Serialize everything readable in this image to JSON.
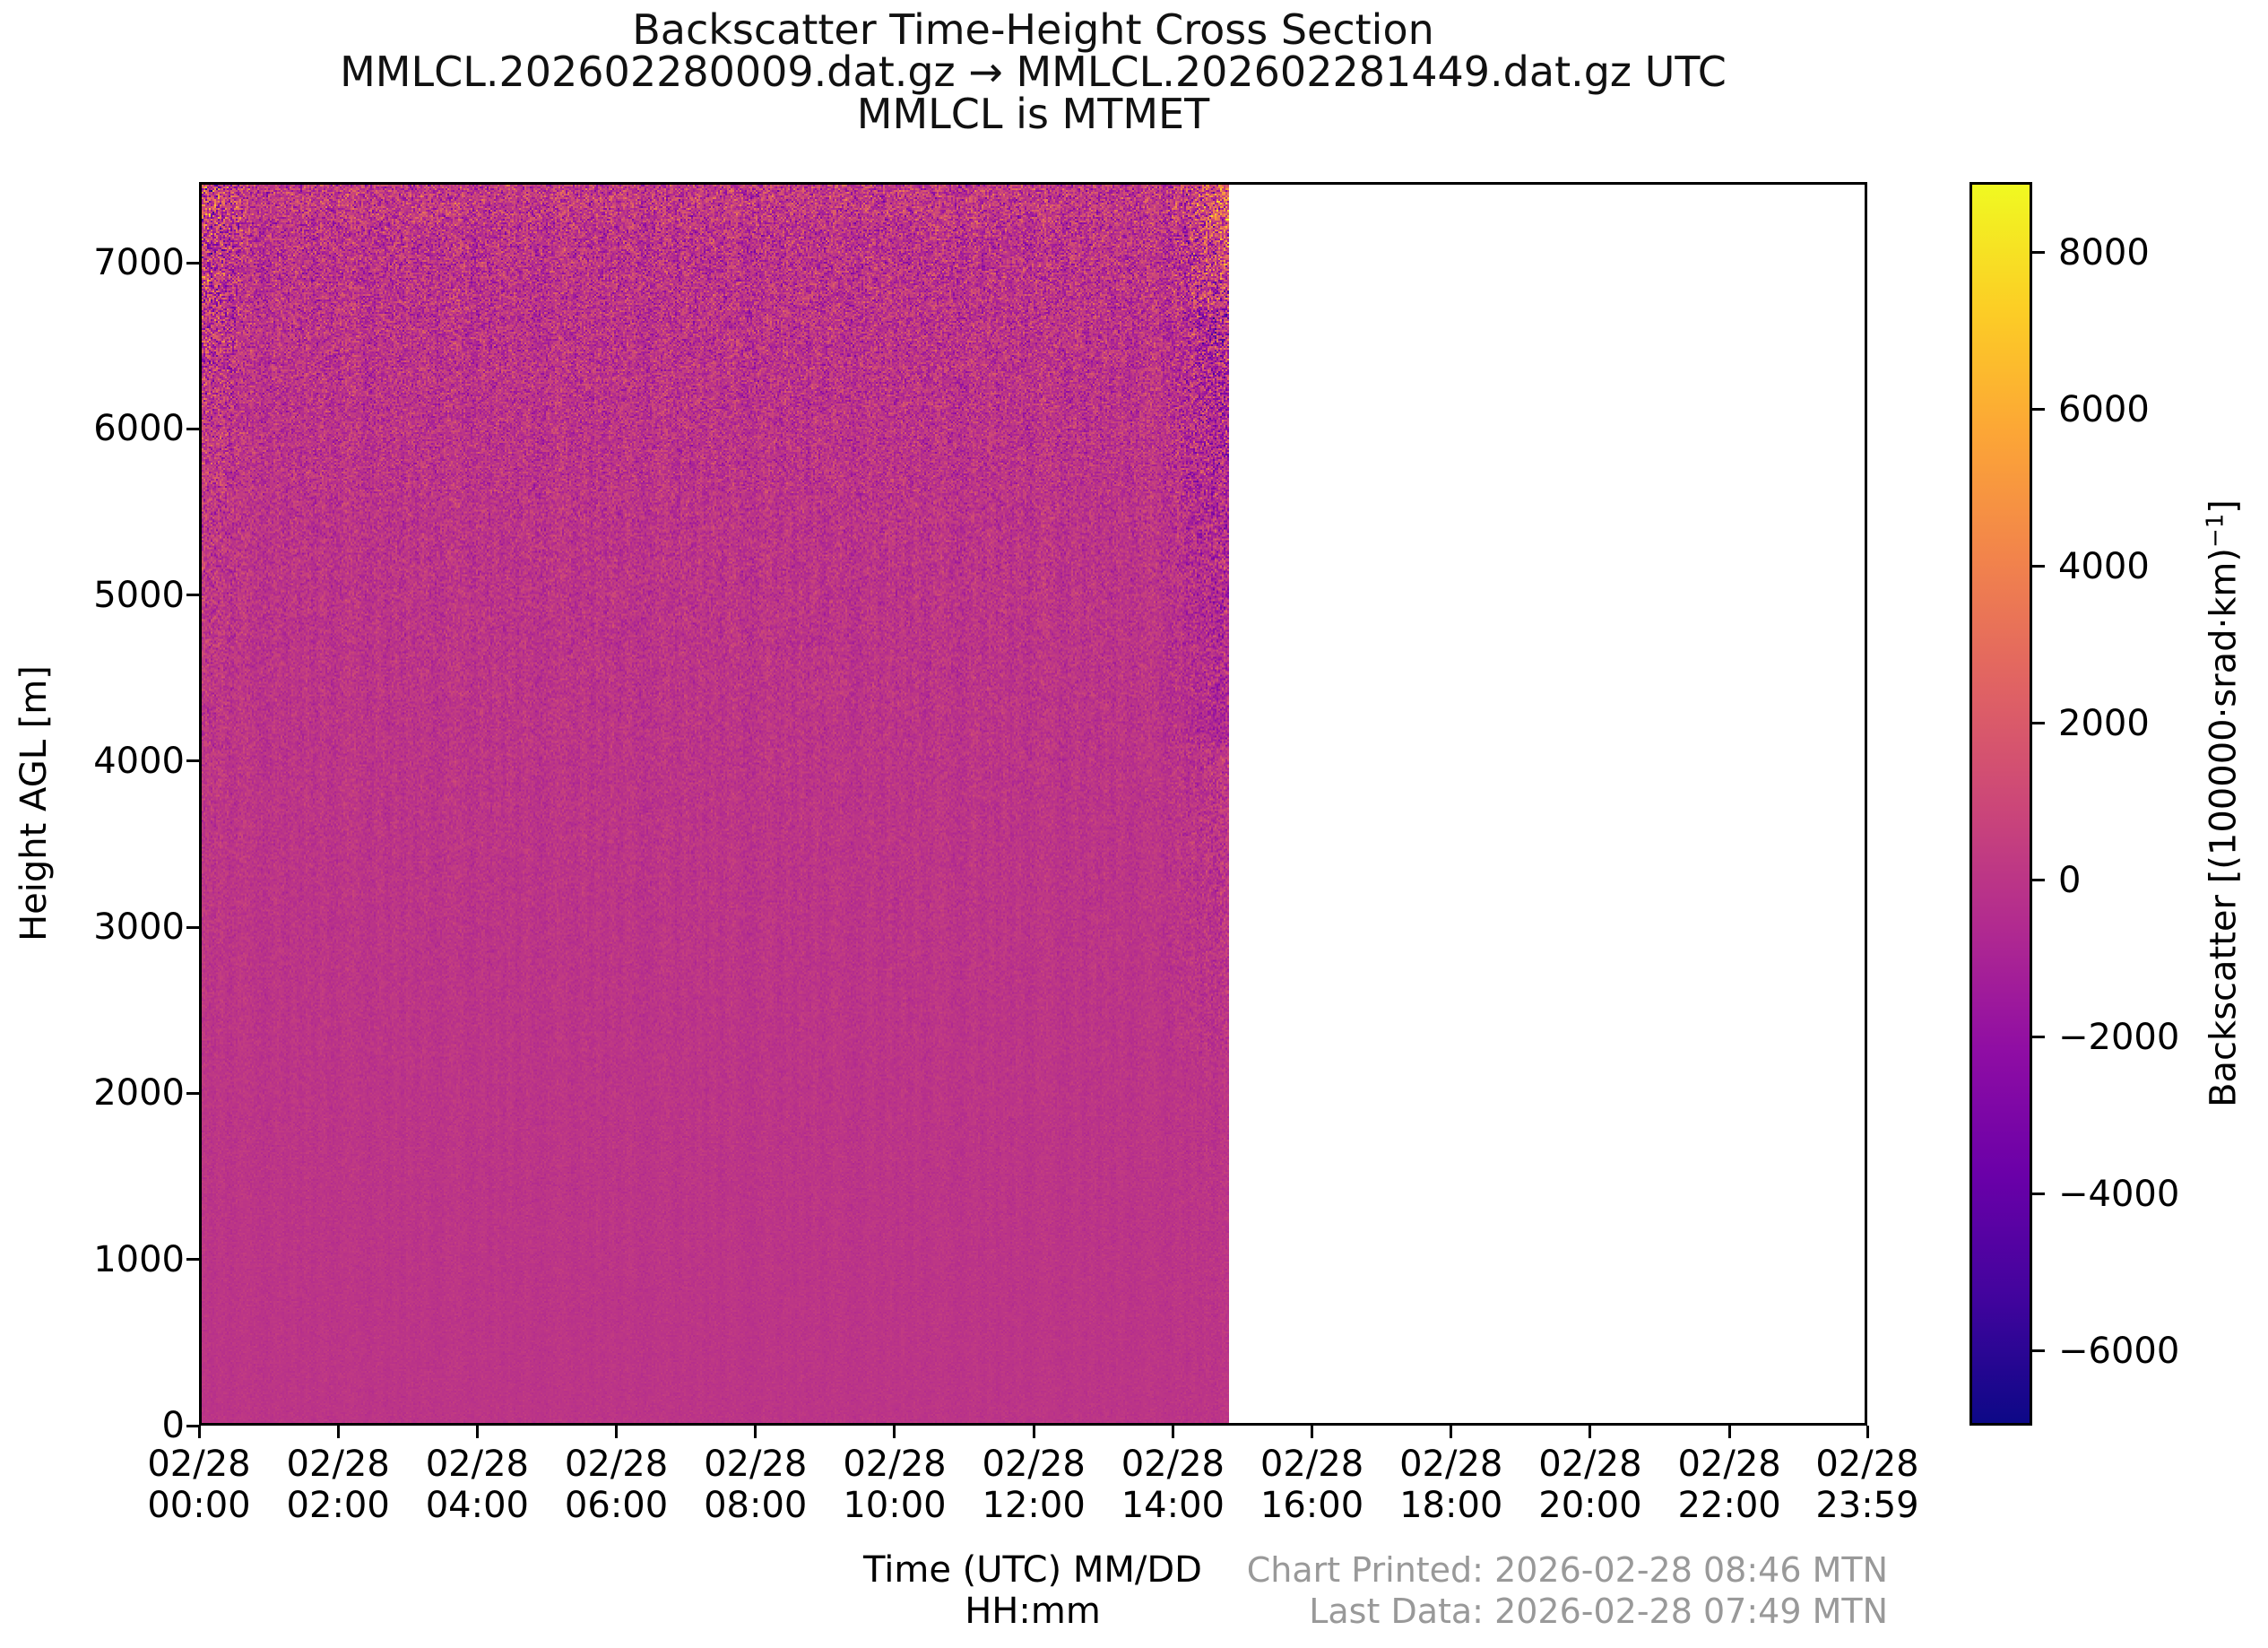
{
  "figure": {
    "title_line1": "Backscatter Time-Height Cross Section",
    "title_line2": "MMLCL.202602280009.dat.gz → MMLCL.202602281449.dat.gz UTC",
    "title_line3": "MMLCL is MTMET",
    "footer_line1": "Chart Printed: 2026-02-28 08:46 MTN",
    "footer_line2": "Last Data: 2026-02-28 07:49 MTN"
  },
  "axes": {
    "xlabel_line1": "Time (UTC) MM/DD",
    "xlabel_line2": "HH:mm",
    "ylabel": "Height AGL [m]",
    "colorbar_label_full": "Backscatter [(100000·srad·km)⁻¹]",
    "colorbar_label_prefix": "Backscatter [(100000·srad·km)",
    "colorbar_label_sup": "−1",
    "colorbar_label_suffix": "]"
  },
  "colors": {
    "background": "#ffffff",
    "axis": "#000000",
    "title_text": "#111111",
    "footer_text": "#999999",
    "bulk_field_magenta": "#b5308d",
    "no_data_region": "#ffffff",
    "colormap_stops": [
      [
        0.0,
        "#0d0887"
      ],
      [
        0.1,
        "#41049d"
      ],
      [
        0.2,
        "#6a00a8"
      ],
      [
        0.3,
        "#8f0da4"
      ],
      [
        0.4,
        "#b12a90"
      ],
      [
        0.5,
        "#cc4778"
      ],
      [
        0.6,
        "#e16462"
      ],
      [
        0.7,
        "#f2844b"
      ],
      [
        0.8,
        "#fca636"
      ],
      [
        0.9,
        "#fcce25"
      ],
      [
        1.0,
        "#f0f921"
      ]
    ]
  },
  "chart_data": {
    "type": "heatmap",
    "title": "Backscatter Time-Height Cross Section",
    "subtitle": "MMLCL.202602280009.dat.gz → MMLCL.202602281449.dat.gz UTC",
    "station_note": "MMLCL is MTMET",
    "xlabel": "Time (UTC) MM/DD HH:mm",
    "ylabel": "Height AGL [m]",
    "colorbar_label": "Backscatter [(100000·srad·km)⁻¹]",
    "colormap": "plasma",
    "grid": false,
    "legend": null,
    "ylim": [
      0,
      7486
    ],
    "x_total_minutes": 1439,
    "x_ticks": [
      {
        "date": "02/28",
        "time": "00:00",
        "minutes": 0
      },
      {
        "date": "02/28",
        "time": "02:00",
        "minutes": 120
      },
      {
        "date": "02/28",
        "time": "04:00",
        "minutes": 240
      },
      {
        "date": "02/28",
        "time": "06:00",
        "minutes": 360
      },
      {
        "date": "02/28",
        "time": "08:00",
        "minutes": 480
      },
      {
        "date": "02/28",
        "time": "10:00",
        "minutes": 600
      },
      {
        "date": "02/28",
        "time": "12:00",
        "minutes": 720
      },
      {
        "date": "02/28",
        "time": "14:00",
        "minutes": 840
      },
      {
        "date": "02/28",
        "time": "16:00",
        "minutes": 960
      },
      {
        "date": "02/28",
        "time": "18:00",
        "minutes": 1080
      },
      {
        "date": "02/28",
        "time": "20:00",
        "minutes": 1200
      },
      {
        "date": "02/28",
        "time": "22:00",
        "minutes": 1320
      },
      {
        "date": "02/28",
        "time": "23:59",
        "minutes": 1439
      }
    ],
    "y_ticks": [
      0,
      1000,
      2000,
      3000,
      4000,
      5000,
      6000,
      7000
    ],
    "colorbar_ticks": [
      {
        "label": "8000",
        "value": 8000
      },
      {
        "label": "6000",
        "value": 6000
      },
      {
        "label": "4000",
        "value": 4000
      },
      {
        "label": "2000",
        "value": 2000
      },
      {
        "label": "0",
        "value": 0
      },
      {
        "label": "−2000",
        "value": -2000
      },
      {
        "label": "−4000",
        "value": -4000
      },
      {
        "label": "−6000",
        "value": -6000
      }
    ],
    "colorbar_range": [
      -6950,
      8900
    ],
    "data_coverage": {
      "start": "02/28 00:09 UTC",
      "end": "02/28 14:49 UTC",
      "start_minutes": 9,
      "end_minutes": 889,
      "after_end": "no data (white region from ~14:49 to 23:59)"
    },
    "field_summary": {
      "typical_value": 0,
      "description": "Backscatter values are near 0 (magenta on the plasma colormap) through the full 0–7486 m column; fine speckle noise amplitude grows with altitude, mixing purple and orange flecks above ~4000 m; extra orange-tinged streaky noise appears in the first hour near the top of the profile and in the final ~45 minutes before the 14:49 UTC cutoff, including a bright orange streak near 7000–7600 m just before the data edge."
    }
  }
}
